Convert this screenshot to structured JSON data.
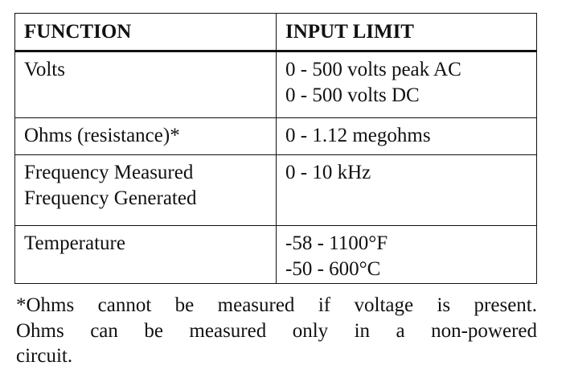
{
  "table": {
    "header": [
      "FUNCTION",
      "INPUT LIMIT"
    ],
    "rows": [
      [
        [
          "Volts"
        ],
        [
          "0 - 500 volts peak AC",
          "0 - 500 volts DC"
        ]
      ],
      [
        [
          "Ohms (resistance)*"
        ],
        [
          "0 - 1.12 megohms"
        ]
      ],
      [
        [
          "Frequency Measured",
          "Frequency Generated"
        ],
        [
          "0 - 10 kHz"
        ]
      ],
      [
        [
          "Temperature"
        ],
        [
          "-58 - 1100°F",
          "-50 - 600°C"
        ]
      ]
    ]
  },
  "footnote": [
    "*Ohms cannot be measured if voltage is present.",
    "Ohms can be measured only in a non-powered",
    "circuit."
  ]
}
